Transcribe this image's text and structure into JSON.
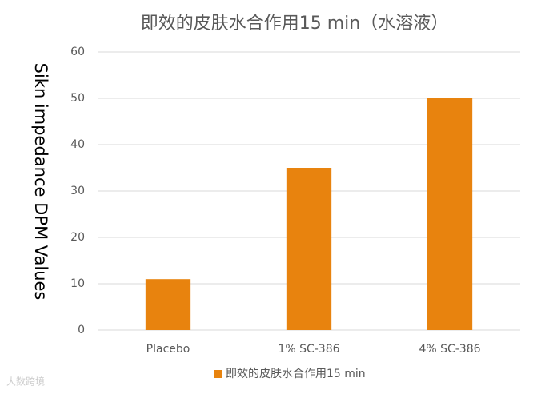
{
  "chart_data": {
    "type": "bar",
    "title": "即效的皮肤水合作用15 min（水溶液）",
    "y_label": "Sikn impedance DPM  Values",
    "categories": [
      "Placebo",
      "1% SC-386",
      "4% SC-386"
    ],
    "series": [
      {
        "name": "即效的皮肤水合作用15 min",
        "color": "#e8830e",
        "values": [
          11,
          35,
          50
        ]
      }
    ],
    "ylim": [
      0,
      60
    ],
    "yticks": [
      0,
      10,
      20,
      30,
      40,
      50,
      60
    ],
    "grid": true,
    "legend": "bottom"
  },
  "watermark": "大数跨境"
}
